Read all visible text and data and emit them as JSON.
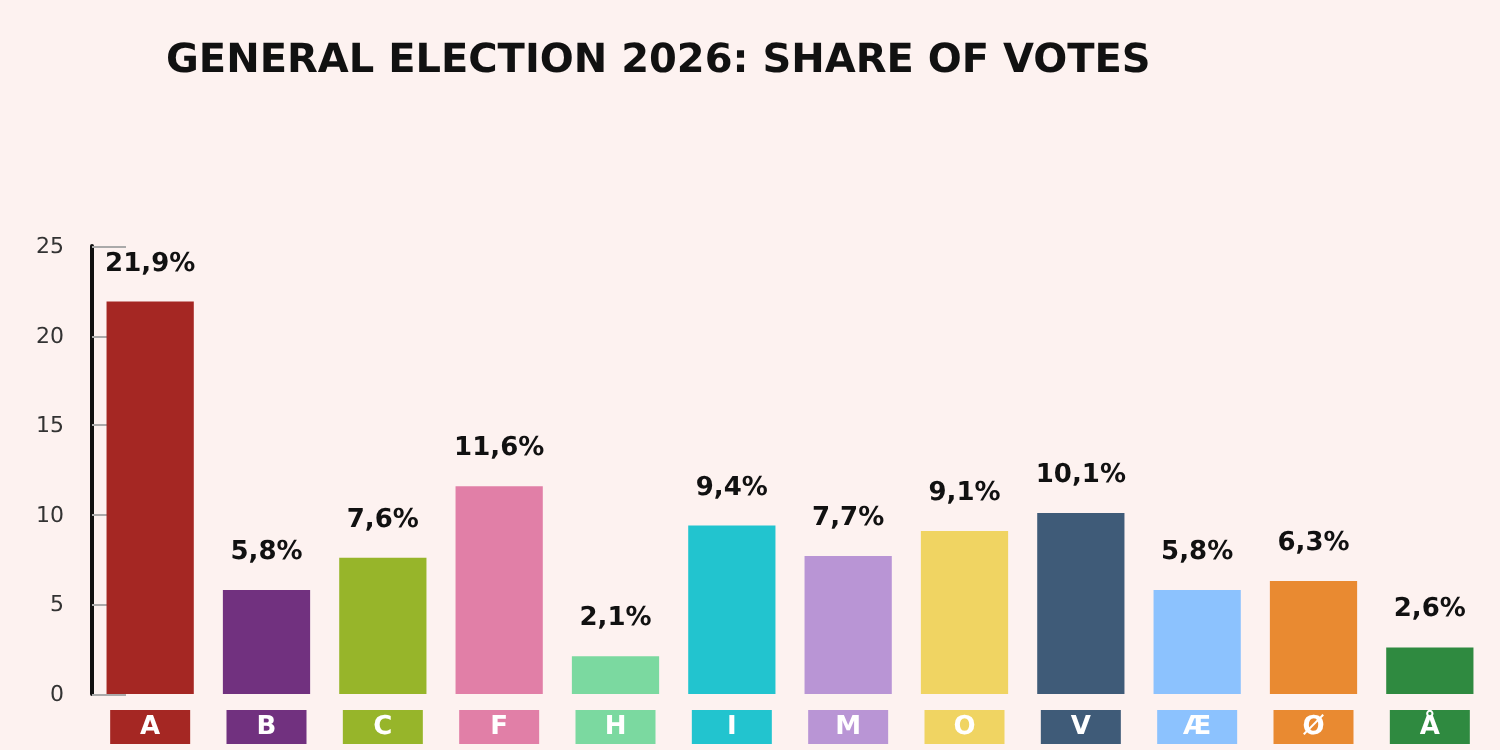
{
  "chart_data": {
    "type": "bar",
    "title": "GENERAL ELECTION 2026: SHARE OF VOTES",
    "categories": [
      "A",
      "B",
      "C",
      "F",
      "H",
      "I",
      "M",
      "O",
      "V",
      "Æ",
      "Ø",
      "Å"
    ],
    "values": [
      21.9,
      5.8,
      7.6,
      11.6,
      2.1,
      9.4,
      7.7,
      9.1,
      10.1,
      5.8,
      6.3,
      2.6
    ],
    "value_labels": [
      "21,9%",
      "5,8%",
      "7,6%",
      "11,6%",
      "2,1%",
      "9,4%",
      "7,7%",
      "9,1%",
      "10,1%",
      "5,8%",
      "6,3%",
      "2,6%"
    ],
    "colors": [
      "#a52723",
      "#71317f",
      "#97b52a",
      "#e17fa7",
      "#7bd9a0",
      "#22c4cf",
      "#b995d5",
      "#f0d462",
      "#3f5b78",
      "#8cc2fe",
      "#e98a31",
      "#2f8a40"
    ],
    "ylim": [
      0,
      25
    ],
    "yticks": [
      0,
      5,
      10,
      15,
      20,
      25
    ],
    "grid": false
  }
}
